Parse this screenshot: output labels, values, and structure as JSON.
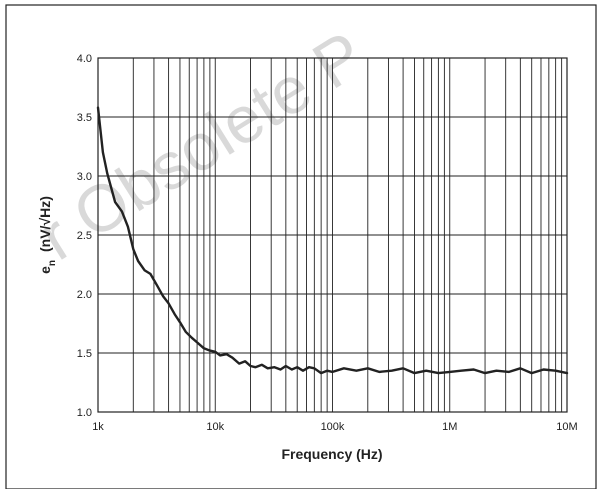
{
  "watermark": "r Obsolete P",
  "chart_data": {
    "type": "line",
    "title": "",
    "xlabel": "Frequency  (Hz)",
    "ylabel_main": "e",
    "ylabel_sub": "n",
    "ylabel_unit": "(nV/√Hz)",
    "xscale": "log",
    "xlim": [
      1000,
      10000000
    ],
    "ylim": [
      1.0,
      4.0
    ],
    "grid": true,
    "x_tick_values": [
      1000,
      10000,
      100000,
      1000000,
      10000000
    ],
    "x_tick_labels": [
      "1k",
      "10k",
      "100k",
      "1M",
      "10M"
    ],
    "y_tick_values": [
      1.0,
      1.5,
      2.0,
      2.5,
      3.0,
      3.5,
      4.0
    ],
    "y_tick_labels": [
      "1.0",
      "1.5",
      "2.0",
      "2.5",
      "3.0",
      "3.5",
      "4.0"
    ],
    "series": [
      {
        "x": [
          1000,
          1100,
          1200,
          1400,
          1600,
          1800,
          2000,
          2200,
          2500,
          2800,
          3200,
          3600,
          4000,
          4500,
          5000,
          5600,
          6300,
          7000,
          8000,
          9000,
          10000,
          11000,
          12500,
          14000,
          16000,
          18000,
          20000,
          22000,
          25000,
          28000,
          32000,
          36000,
          40000,
          45000,
          50000,
          56000,
          63000,
          70000,
          80000,
          90000,
          100000,
          125000,
          160000,
          200000,
          250000,
          320000,
          400000,
          500000,
          630000,
          800000,
          1000000,
          1250000,
          1600000,
          2000000,
          2500000,
          3200000,
          4000000,
          5000000,
          6300000,
          8000000,
          10000000
        ],
        "y": [
          3.58,
          3.2,
          3.02,
          2.78,
          2.7,
          2.57,
          2.38,
          2.28,
          2.2,
          2.17,
          2.07,
          1.98,
          1.92,
          1.83,
          1.76,
          1.68,
          1.63,
          1.59,
          1.54,
          1.52,
          1.51,
          1.48,
          1.49,
          1.46,
          1.41,
          1.43,
          1.39,
          1.38,
          1.4,
          1.37,
          1.38,
          1.36,
          1.39,
          1.36,
          1.38,
          1.35,
          1.38,
          1.37,
          1.33,
          1.35,
          1.34,
          1.37,
          1.35,
          1.37,
          1.34,
          1.35,
          1.37,
          1.33,
          1.35,
          1.33,
          1.34,
          1.35,
          1.36,
          1.33,
          1.35,
          1.34,
          1.37,
          1.33,
          1.36,
          1.35,
          1.33
        ]
      }
    ]
  }
}
